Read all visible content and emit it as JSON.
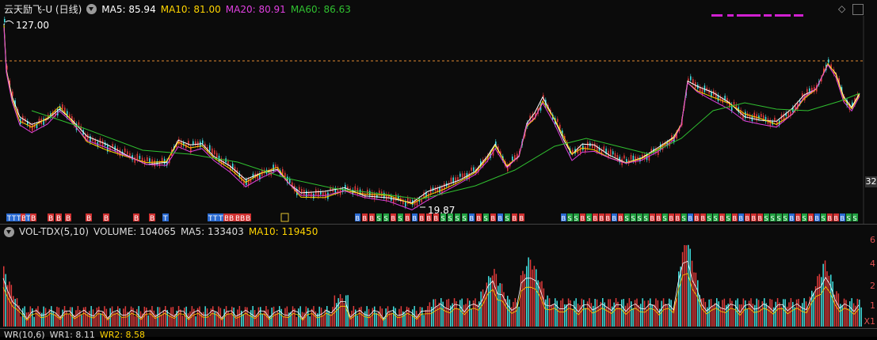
{
  "header": {
    "title": "云天励飞-U (日线)",
    "ma5_label": "MA5: 85.94",
    "ma10_label": "MA10: 81.00",
    "ma20_label": "MA20: 80.91",
    "ma60_label": "MA60: 86.63"
  },
  "price_panel": {
    "high_label": "127.00",
    "low_label": "19.87",
    "axis_tick": "32",
    "ma_colors": {
      "ma5": "#ffffff",
      "ma10": "#ffd400",
      "ma20": "#e040e0",
      "ma60": "#30c030"
    }
  },
  "signals": {
    "left_group": [
      "T",
      "T",
      "T",
      "B",
      "T",
      "B",
      "B",
      "B",
      "B",
      "B",
      "B",
      "B",
      "B",
      "T",
      "T",
      "T",
      "T",
      "B",
      "B",
      "B",
      "B",
      "B"
    ],
    "middle_marker": "▣",
    "right_group_labels": [
      "B",
      "B",
      "B",
      "S",
      "S",
      "B",
      "S",
      "B",
      "B",
      "B",
      "B",
      "B",
      "S",
      "S",
      "S",
      "S",
      "B",
      "B",
      "S",
      "B",
      "B",
      "S"
    ]
  },
  "volume_panel": {
    "header_name": "VOL-TDX(5,10)",
    "volume_label": "VOLUME: 104065",
    "ma5_label": "MA5: 133403",
    "ma10_label": "MA10: 119450",
    "axis_ticks": [
      "6",
      "4",
      "2",
      "1"
    ],
    "unit_label": "X1"
  },
  "wr_panel": {
    "header_name": "WR(10,6)",
    "wr1_label": "WR1: 8.11",
    "wr2_label": "WR2: 8.58"
  },
  "colors": {
    "up": "#e03a3a",
    "down": "#40e0e0",
    "background": "#0b0b0b",
    "ref_line": "#e08a30"
  }
}
